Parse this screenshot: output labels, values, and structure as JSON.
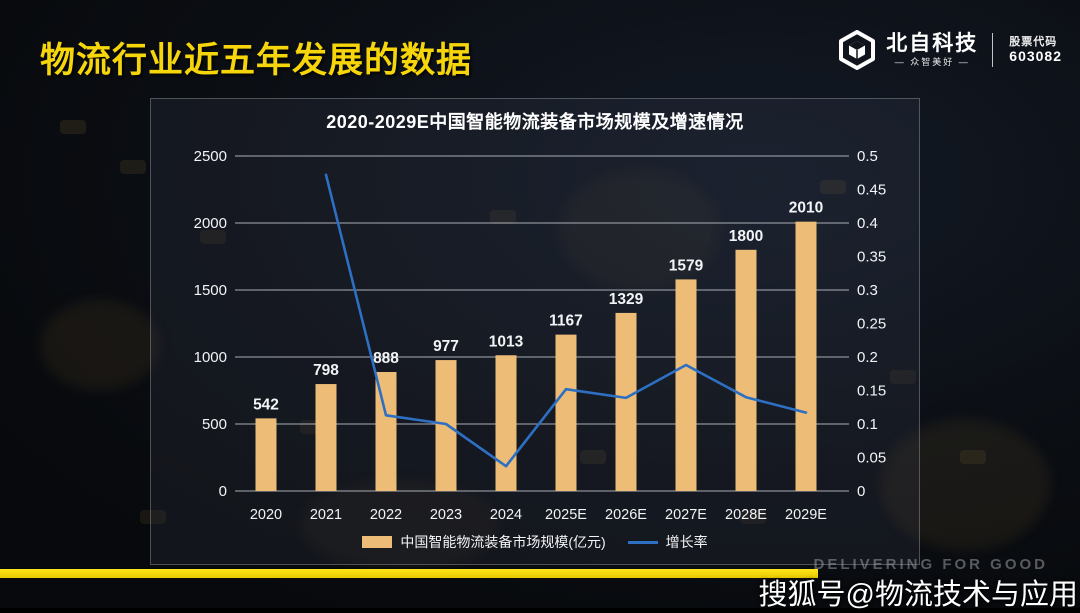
{
  "page": {
    "title": "物流行业近五年发展的数据",
    "logo": {
      "name": "北自科技",
      "tagline": "— 众智美好 —",
      "stock_label": "股票代码",
      "stock_code": "603082"
    },
    "background_text": "DELIVERING FOR GOOD",
    "watermark": "搜狐号@物流技术与应用"
  },
  "chart_data": {
    "type": "bar",
    "title": "2020-2029E中国智能物流装备市场规模及增速情况",
    "categories": [
      "2020",
      "2021",
      "2022",
      "2023",
      "2024",
      "2025E",
      "2026E",
      "2027E",
      "2028E",
      "2029E"
    ],
    "series": [
      {
        "name": "中国智能物流装备市场规模(亿元)",
        "type": "bar",
        "axis": "left",
        "values": [
          542,
          798,
          888,
          977,
          1013,
          1167,
          1329,
          1579,
          1800,
          2010
        ],
        "color": "#edbd78"
      },
      {
        "name": "增长率",
        "type": "line",
        "axis": "right",
        "values": [
          null,
          0.472,
          0.113,
          0.1,
          0.037,
          0.152,
          0.139,
          0.188,
          0.14,
          0.117
        ],
        "color": "#2d6fc2"
      }
    ],
    "left_axis": {
      "min": 0,
      "max": 2500,
      "step": 500,
      "ticks": [
        "0",
        "500",
        "1000",
        "1500",
        "2000",
        "2500"
      ]
    },
    "right_axis": {
      "min": 0,
      "max": 0.5,
      "step": 0.05,
      "ticks": [
        "0",
        "0.05",
        "0.1",
        "0.15",
        "0.2",
        "0.25",
        "0.3",
        "0.35",
        "0.4",
        "0.45",
        "0.5"
      ]
    },
    "grid": true,
    "legend_position": "bottom",
    "colors": {
      "accent_yellow": "#f6d60a",
      "bar": "#edbd78",
      "line": "#2d6fc2",
      "grid": "#c3c7cd",
      "text": "#f2f4f6",
      "background": "#0b0e13"
    }
  }
}
